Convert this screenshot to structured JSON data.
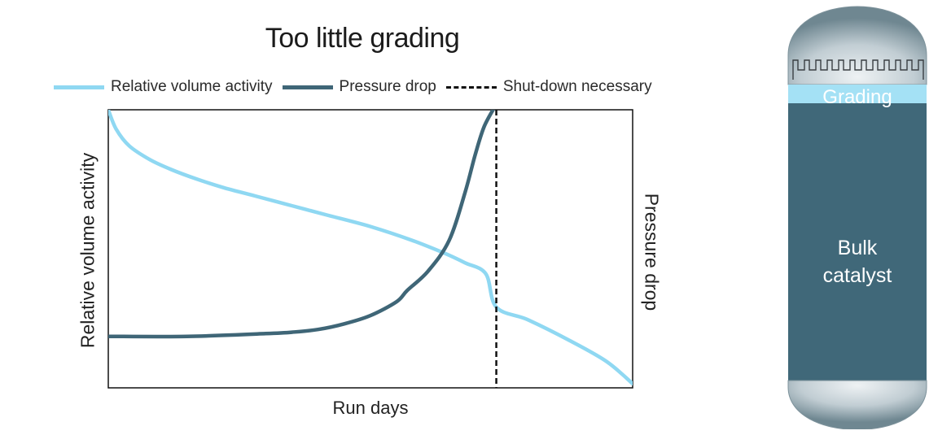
{
  "title": "Too little grading",
  "legend": [
    {
      "label": "Relative volume activity",
      "color": "#8fd8f2",
      "style": "solid"
    },
    {
      "label": "Pressure drop",
      "color": "#3f6677",
      "style": "solid"
    },
    {
      "label": "Shut-down necessary",
      "color": "#111111",
      "style": "dashed"
    }
  ],
  "chart_data": {
    "type": "line",
    "title": "Too little grading",
    "xlabel": "Run days",
    "ylabel": "Relative volume activity",
    "ylabel_right": "Pressure drop",
    "xlim": [
      0,
      100
    ],
    "ylim": [
      0,
      100
    ],
    "grid": false,
    "legend_position": "top",
    "ticks": "none",
    "series": [
      {
        "name": "Relative volume activity",
        "color": "#8fd8f2",
        "axis": "left",
        "x": [
          0,
          1.5,
          4,
          8,
          12,
          17,
          22,
          28,
          35,
          42,
          50,
          58,
          64,
          68,
          72,
          74,
          80,
          88,
          95,
          100
        ],
        "y": [
          100,
          93,
          87,
          82,
          78.5,
          75,
          72,
          69,
          65.5,
          62,
          58,
          53,
          48.5,
          45,
          41,
          29,
          24.5,
          17,
          9.5,
          1.5
        ]
      },
      {
        "name": "Pressure drop",
        "color": "#3f6677",
        "axis": "right",
        "x": [
          0,
          15,
          30,
          35,
          40,
          45,
          50,
          55,
          57,
          61,
          65,
          68,
          70,
          71.7,
          74
        ],
        "y": [
          18.5,
          18.5,
          19.5,
          20,
          21,
          23,
          26,
          31,
          35,
          42,
          53,
          70,
          84,
          94,
          102
        ]
      }
    ],
    "annotations": [
      {
        "type": "vline",
        "x": 74,
        "label": "Shut-down necessary",
        "style": "dashed",
        "color": "#111111"
      }
    ]
  },
  "reactor": {
    "grading_label": "Grading",
    "bulk_label_line1": "Bulk",
    "bulk_label_line2": "catalyst",
    "body_color": "#406879",
    "grading_color": "#a4e1f5"
  }
}
